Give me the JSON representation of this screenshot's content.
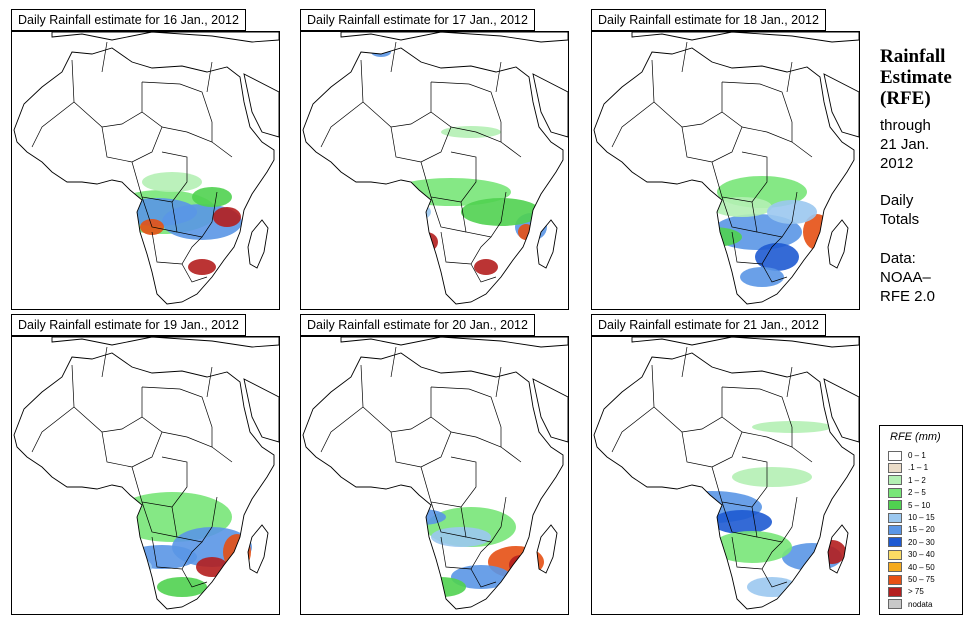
{
  "panels": [
    {
      "title": "Daily Rainfall estimate for  16 Jan., 2012"
    },
    {
      "title": "Daily Rainfall estimate for  17 Jan., 2012"
    },
    {
      "title": "Daily Rainfall estimate for  18 Jan., 2012"
    },
    {
      "title": "Daily Rainfall estimate for  19 Jan., 2012"
    },
    {
      "title": "Daily Rainfall estimate for  20 Jan., 2012"
    },
    {
      "title": "Daily Rainfall estimate for  21 Jan., 2012"
    }
  ],
  "side": {
    "title_line1": "Rainfall",
    "title_line2": "Estimate",
    "title_line3": "(RFE)",
    "through_line1": "through",
    "through_line2": "21 Jan.",
    "through_line3": "2012",
    "daily_line1": "Daily",
    "daily_line2": "Totals",
    "data_line1": "Data:",
    "data_line2": "NOAA–",
    "data_line3": "RFE 2.0"
  },
  "legend": {
    "title": "RFE (mm)",
    "items": [
      {
        "label": "0 – 1",
        "color": "#ffffff"
      },
      {
        "label": ".1 – 1",
        "color": "#eadcc8"
      },
      {
        "label": "1 – 2",
        "color": "#b4f0b4"
      },
      {
        "label": "2 – 5",
        "color": "#78e678"
      },
      {
        "label": "5 – 10",
        "color": "#50d250"
      },
      {
        "label": "10 – 15",
        "color": "#9bc8f0"
      },
      {
        "label": "15 – 20",
        "color": "#5a96e6"
      },
      {
        "label": "20 – 30",
        "color": "#1e5ad2"
      },
      {
        "label": "30 – 40",
        "color": "#fadc64"
      },
      {
        "label": "40 – 50",
        "color": "#f5aa1e"
      },
      {
        "label": "50 – 75",
        "color": "#e65014"
      },
      {
        "label": "> 75",
        "color": "#b41e1e"
      },
      {
        "label": "nodata",
        "color": "#c8c8c8"
      }
    ]
  }
}
